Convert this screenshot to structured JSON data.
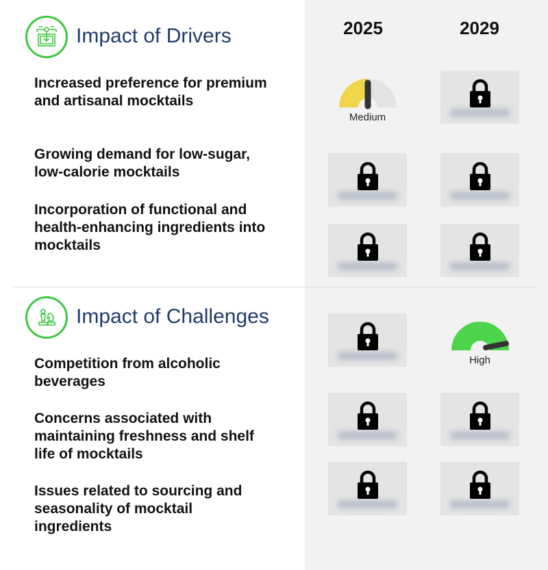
{
  "years": [
    "2025",
    "2029"
  ],
  "drivers": {
    "title": "Impact of Drivers",
    "icon": "machine-download-icon",
    "items": [
      {
        "label": "Increased preference for premium and artisanal mocktails",
        "y2025": {
          "locked": false,
          "level": "Medium",
          "color": "#f0d44a"
        },
        "y2029": {
          "locked": true
        }
      },
      {
        "label": "Growing demand for low-sugar, low-calorie mocktails",
        "y2025": {
          "locked": true
        },
        "y2029": {
          "locked": true
        }
      },
      {
        "label": "Incorporation of functional and health-enhancing ingredients into mocktails",
        "y2025": {
          "locked": true
        },
        "y2029": {
          "locked": true
        }
      }
    ]
  },
  "challenges": {
    "title": "Impact of Challenges",
    "icon": "chess-pieces-icon",
    "items": [
      {
        "label": "Competition from alcoholic beverages",
        "y2025": {
          "locked": true
        },
        "y2029": {
          "locked": false,
          "level": "High",
          "color": "#4cd44c"
        }
      },
      {
        "label": "Concerns associated with maintaining freshness and shelf life of mocktails",
        "y2025": {
          "locked": true
        },
        "y2029": {
          "locked": true
        }
      },
      {
        "label": "Issues related to sourcing and seasonality of mocktail ingredients",
        "y2025": {
          "locked": true
        },
        "y2029": {
          "locked": true
        }
      }
    ]
  },
  "colors": {
    "accent": "#3cc83c",
    "title": "#1f3a6b",
    "panel": "#f2f2f2"
  }
}
